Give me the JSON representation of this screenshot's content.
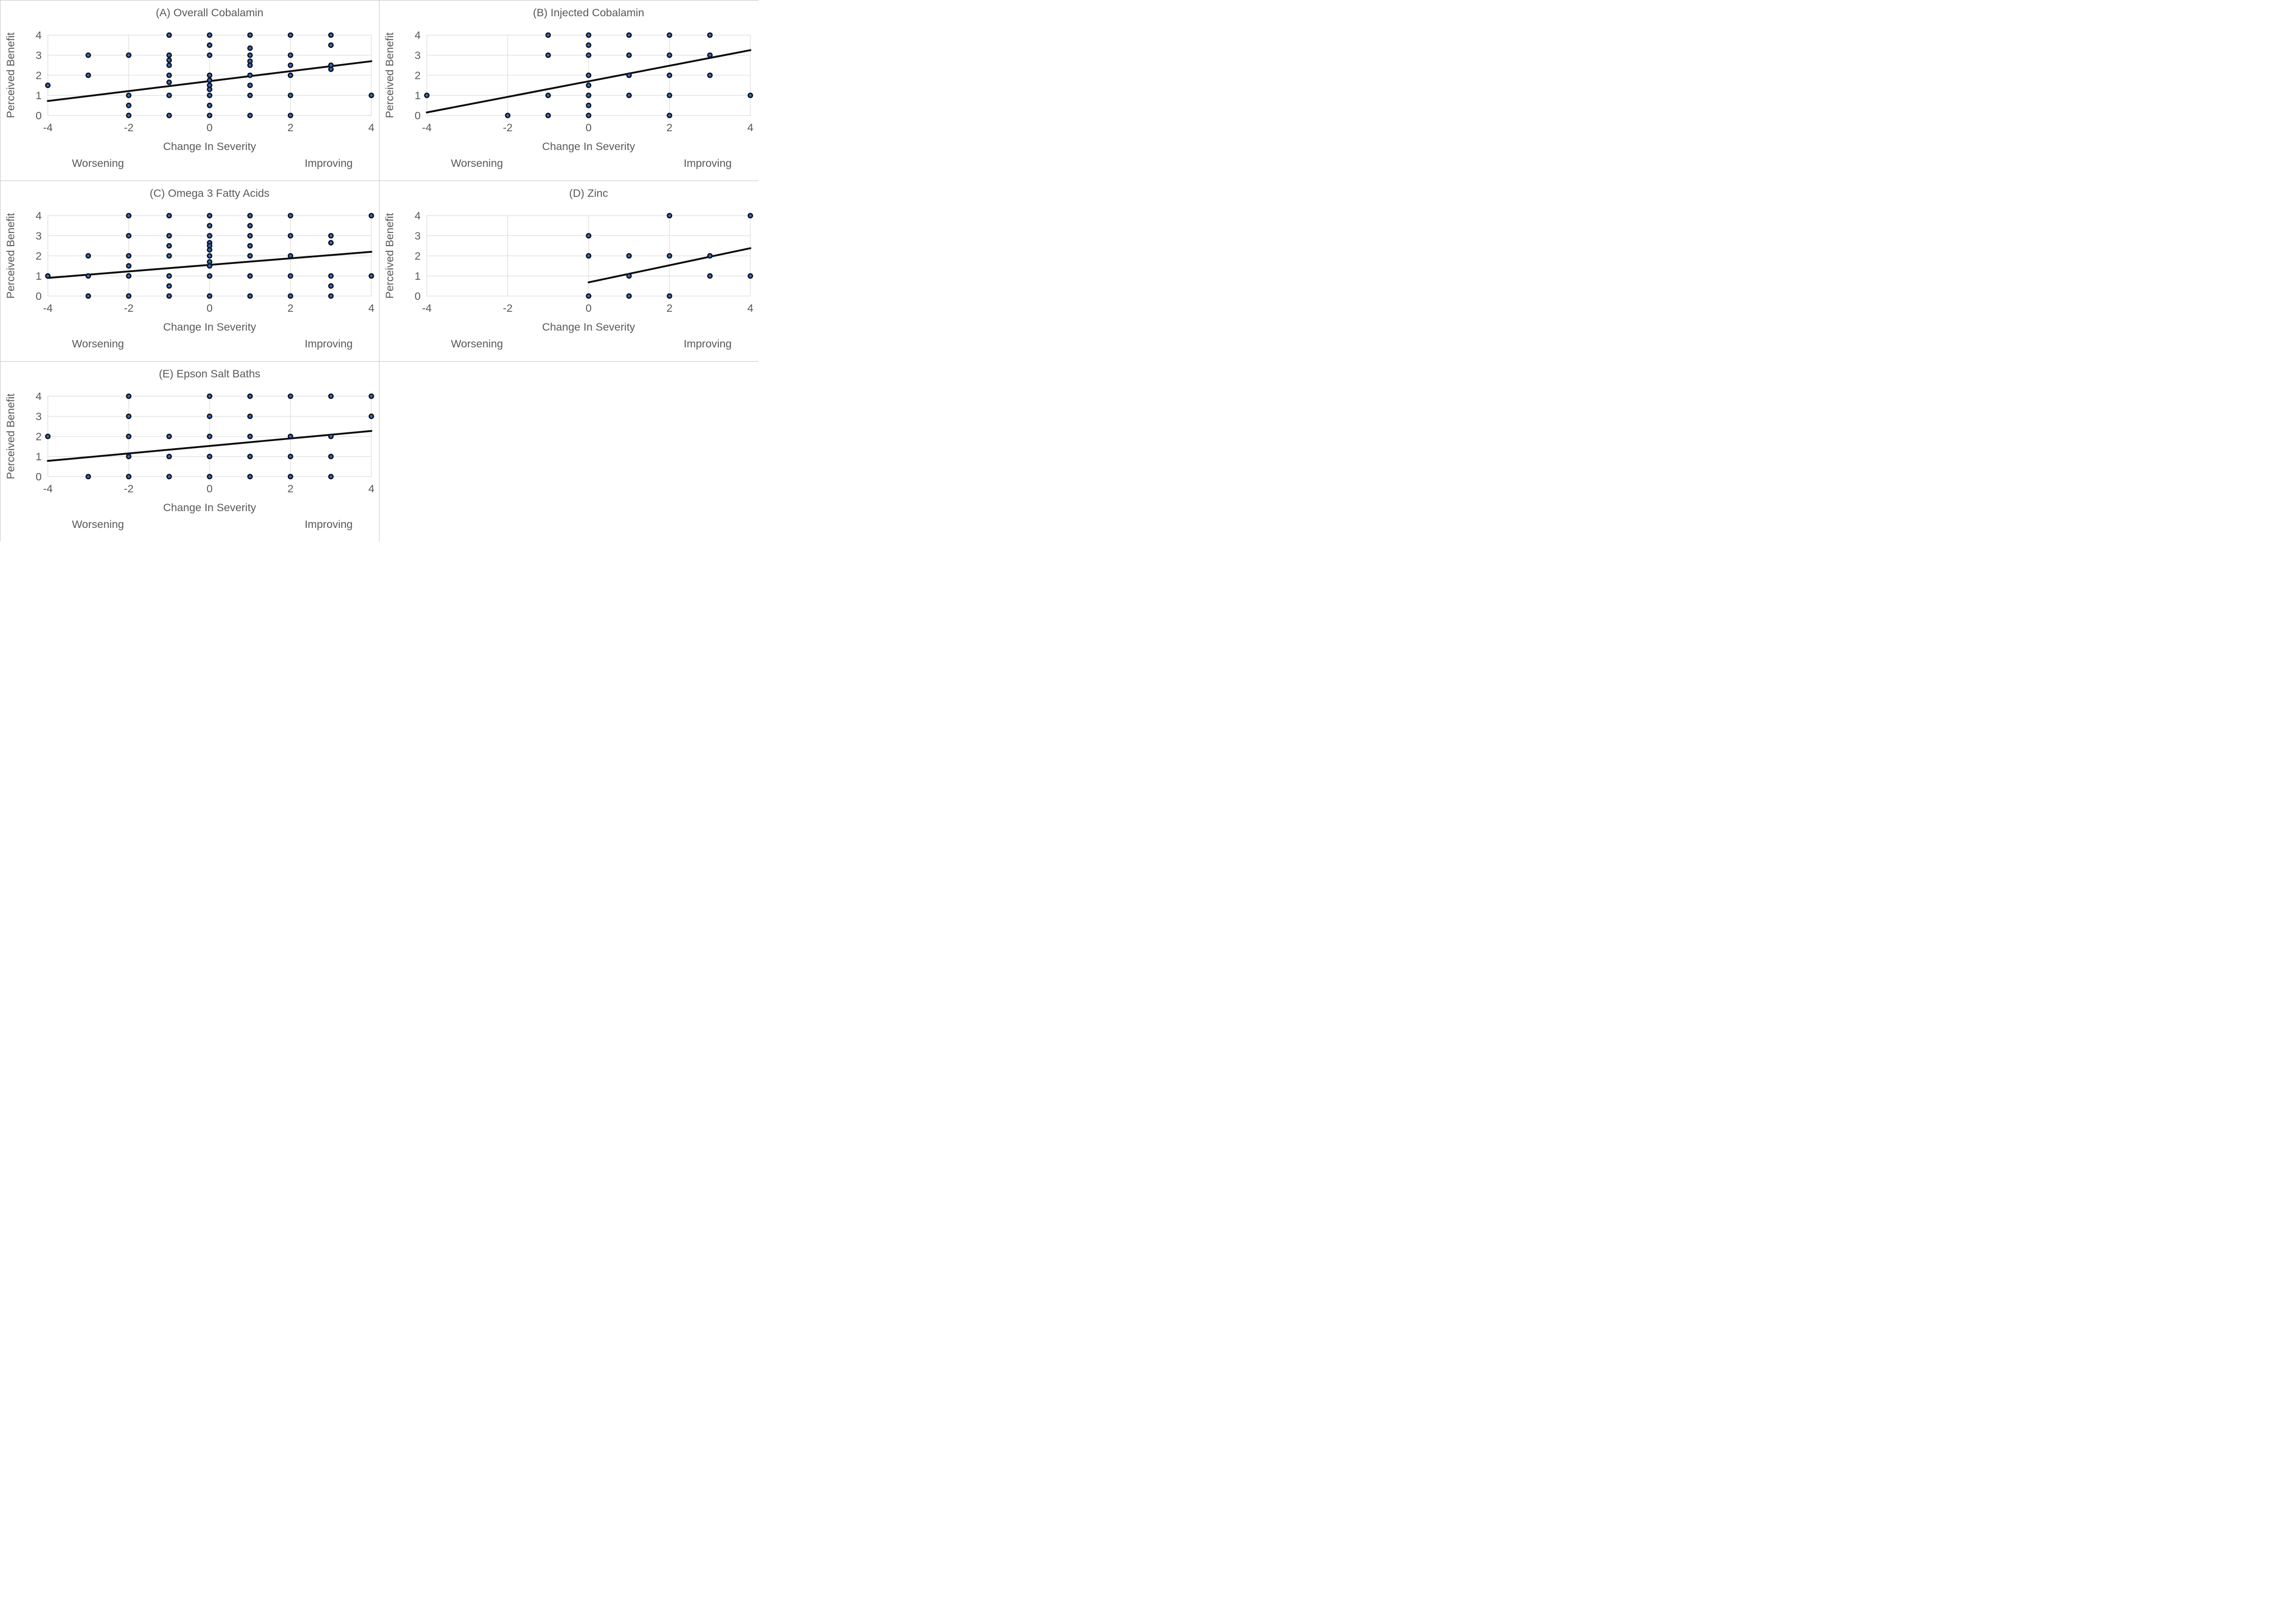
{
  "figure": {
    "background": "#ffffff",
    "border_color": "#c8c8c8",
    "grid_color": "#d9d9d9",
    "text_color": "#595959",
    "point_fill": "#3b69bd",
    "point_stroke": "#0d1420",
    "trend_color": "#0a0a0a"
  },
  "chart_data": [
    {
      "type": "scatter",
      "panel": "A",
      "grid_cell": [
        0,
        0
      ],
      "title": "(A) Overall Cobalamin",
      "xlabel": "Change In Severity",
      "ylabel": "Perceived Benefit",
      "annotation_left": "Worsening",
      "annotation_right": "Improving",
      "xlim": [
        -4,
        4
      ],
      "ylim": [
        0,
        4
      ],
      "xticks": [
        -4,
        -2,
        0,
        2,
        4
      ],
      "yticks": [
        0,
        1,
        2,
        3,
        4
      ],
      "grid_vertical_at": [
        -2,
        0,
        2
      ],
      "points": [
        [
          -4,
          1.5
        ],
        [
          -3,
          3
        ],
        [
          -3,
          2
        ],
        [
          -2,
          3
        ],
        [
          -2,
          1
        ],
        [
          -2,
          0.5
        ],
        [
          -2,
          0
        ],
        [
          -1,
          4
        ],
        [
          -1,
          3
        ],
        [
          -1,
          2.75
        ],
        [
          -1,
          2.5
        ],
        [
          -1,
          2
        ],
        [
          -1,
          1.65
        ],
        [
          -1,
          1
        ],
        [
          -1,
          0
        ],
        [
          0,
          4
        ],
        [
          0,
          3.5
        ],
        [
          0,
          3
        ],
        [
          0,
          2
        ],
        [
          0,
          1.75
        ],
        [
          0,
          1.5
        ],
        [
          0,
          1.3
        ],
        [
          0,
          1
        ],
        [
          0,
          0.5
        ],
        [
          0,
          0
        ],
        [
          1,
          4
        ],
        [
          1,
          3.35
        ],
        [
          1,
          3
        ],
        [
          1,
          2.7
        ],
        [
          1,
          2.5
        ],
        [
          1,
          2
        ],
        [
          1,
          1.5
        ],
        [
          1,
          1
        ],
        [
          1,
          0
        ],
        [
          2,
          4
        ],
        [
          2,
          3
        ],
        [
          2,
          2.5
        ],
        [
          2,
          2
        ],
        [
          2,
          1
        ],
        [
          2,
          0
        ],
        [
          3,
          4
        ],
        [
          3,
          3.5
        ],
        [
          3,
          2.5
        ],
        [
          3,
          2.3
        ],
        [
          4,
          1
        ]
      ],
      "trendline": {
        "x1": -4,
        "y1": 0.72,
        "x2": 4,
        "y2": 2.7
      }
    },
    {
      "type": "scatter",
      "panel": "B",
      "grid_cell": [
        0,
        1
      ],
      "title": "(B) Injected Cobalamin",
      "xlabel": "Change In Severity",
      "ylabel": "Perceived Benefit",
      "annotation_left": "Worsening",
      "annotation_right": "Improving",
      "xlim": [
        -4,
        4
      ],
      "ylim": [
        0,
        4
      ],
      "xticks": [
        -4,
        -2,
        0,
        2,
        4
      ],
      "yticks": [
        0,
        1,
        2,
        3,
        4
      ],
      "grid_vertical_at": [
        -2,
        0,
        2
      ],
      "points": [
        [
          -4,
          1
        ],
        [
          -2,
          0
        ],
        [
          -1,
          4
        ],
        [
          -1,
          3
        ],
        [
          -1,
          1
        ],
        [
          -1,
          0
        ],
        [
          0,
          4
        ],
        [
          0,
          3.5
        ],
        [
          0,
          3
        ],
        [
          0,
          2
        ],
        [
          0,
          1.5
        ],
        [
          0,
          1
        ],
        [
          0,
          0.5
        ],
        [
          0,
          0
        ],
        [
          1,
          4
        ],
        [
          1,
          3
        ],
        [
          1,
          2
        ],
        [
          1,
          1
        ],
        [
          2,
          4
        ],
        [
          2,
          3
        ],
        [
          2,
          2
        ],
        [
          2,
          1
        ],
        [
          2,
          0
        ],
        [
          3,
          4
        ],
        [
          3,
          3
        ],
        [
          3,
          2
        ],
        [
          4,
          1
        ]
      ],
      "trendline": {
        "x1": -4,
        "y1": 0.15,
        "x2": 4,
        "y2": 3.25
      }
    },
    {
      "type": "scatter",
      "panel": "C",
      "grid_cell": [
        1,
        0
      ],
      "title": "(C) Omega 3 Fatty Acids",
      "xlabel": "Change In Severity",
      "ylabel": "Perceived Benefit",
      "annotation_left": "Worsening",
      "annotation_right": "Improving",
      "xlim": [
        -4,
        4
      ],
      "ylim": [
        0,
        4
      ],
      "xticks": [
        -4,
        -2,
        0,
        2,
        4
      ],
      "yticks": [
        0,
        1,
        2,
        3,
        4
      ],
      "grid_vertical_at": [
        -2,
        0,
        2
      ],
      "points": [
        [
          -4,
          1
        ],
        [
          -3,
          2
        ],
        [
          -3,
          1
        ],
        [
          -3,
          0
        ],
        [
          -2,
          4
        ],
        [
          -2,
          3
        ],
        [
          -2,
          2
        ],
        [
          -2,
          1.5
        ],
        [
          -2,
          1
        ],
        [
          -2,
          0
        ],
        [
          -1,
          4
        ],
        [
          -1,
          3
        ],
        [
          -1,
          2.5
        ],
        [
          -1,
          2
        ],
        [
          -1,
          1
        ],
        [
          -1,
          0.5
        ],
        [
          -1,
          0
        ],
        [
          0,
          4
        ],
        [
          0,
          3.5
        ],
        [
          0,
          3
        ],
        [
          0,
          2.65
        ],
        [
          0,
          2.5
        ],
        [
          0,
          2.3
        ],
        [
          0,
          2
        ],
        [
          0,
          1.7
        ],
        [
          0,
          1.5
        ],
        [
          0,
          1
        ],
        [
          0,
          0
        ],
        [
          1,
          4
        ],
        [
          1,
          3.5
        ],
        [
          1,
          3
        ],
        [
          1,
          2.5
        ],
        [
          1,
          2
        ],
        [
          1,
          1
        ],
        [
          1,
          0
        ],
        [
          2,
          4
        ],
        [
          2,
          3
        ],
        [
          2,
          2
        ],
        [
          2,
          1
        ],
        [
          2,
          0
        ],
        [
          3,
          3
        ],
        [
          3,
          2.65
        ],
        [
          3,
          1
        ],
        [
          3,
          0.5
        ],
        [
          3,
          0
        ],
        [
          4,
          4
        ],
        [
          4,
          1
        ]
      ],
      "trendline": {
        "x1": -4,
        "y1": 0.9,
        "x2": 4,
        "y2": 2.2
      }
    },
    {
      "type": "scatter",
      "panel": "D",
      "grid_cell": [
        1,
        1
      ],
      "title": "(D) Zinc",
      "xlabel": "Change In Severity",
      "ylabel": "Perceived Benefit",
      "annotation_left": "Worsening",
      "annotation_right": "Improving",
      "xlim": [
        -4,
        4
      ],
      "ylim": [
        0,
        4
      ],
      "xticks": [
        -4,
        -2,
        0,
        2,
        4
      ],
      "yticks": [
        0,
        1,
        2,
        3,
        4
      ],
      "grid_vertical_at": [
        -2,
        0,
        2
      ],
      "points": [
        [
          0,
          3
        ],
        [
          0,
          2
        ],
        [
          0,
          0
        ],
        [
          1,
          2
        ],
        [
          1,
          1
        ],
        [
          1,
          0
        ],
        [
          2,
          4
        ],
        [
          2,
          2
        ],
        [
          2,
          0
        ],
        [
          3,
          2
        ],
        [
          3,
          1
        ],
        [
          4,
          4
        ],
        [
          4,
          1
        ]
      ],
      "trendline": {
        "x1": 0,
        "y1": 0.68,
        "x2": 4,
        "y2": 2.38
      }
    },
    {
      "type": "scatter",
      "panel": "E",
      "grid_cell": [
        2,
        0
      ],
      "title": "(E) Epson Salt Baths",
      "xlabel": "Change In Severity",
      "ylabel": "Perceived Benefit",
      "annotation_left": "Worsening",
      "annotation_right": "Improving",
      "xlim": [
        -4,
        4
      ],
      "ylim": [
        0,
        4
      ],
      "xticks": [
        -4,
        -2,
        0,
        2,
        4
      ],
      "yticks": [
        0,
        1,
        2,
        3,
        4
      ],
      "grid_vertical_at": [
        -2,
        0,
        2
      ],
      "points": [
        [
          -4,
          2
        ],
        [
          -3,
          0
        ],
        [
          -2,
          4
        ],
        [
          -2,
          3
        ],
        [
          -2,
          2
        ],
        [
          -2,
          1
        ],
        [
          -2,
          0
        ],
        [
          -1,
          2
        ],
        [
          -1,
          1
        ],
        [
          -1,
          0
        ],
        [
          0,
          4
        ],
        [
          0,
          3
        ],
        [
          0,
          2
        ],
        [
          0,
          1
        ],
        [
          0,
          0
        ],
        [
          1,
          4
        ],
        [
          1,
          3
        ],
        [
          1,
          2
        ],
        [
          1,
          1
        ],
        [
          1,
          0
        ],
        [
          2,
          4
        ],
        [
          2,
          2
        ],
        [
          2,
          1
        ],
        [
          2,
          0
        ],
        [
          3,
          4
        ],
        [
          3,
          2
        ],
        [
          3,
          1
        ],
        [
          3,
          0
        ],
        [
          4,
          4
        ],
        [
          4,
          3
        ]
      ],
      "trendline": {
        "x1": -4,
        "y1": 0.78,
        "x2": 4,
        "y2": 2.27
      }
    }
  ]
}
